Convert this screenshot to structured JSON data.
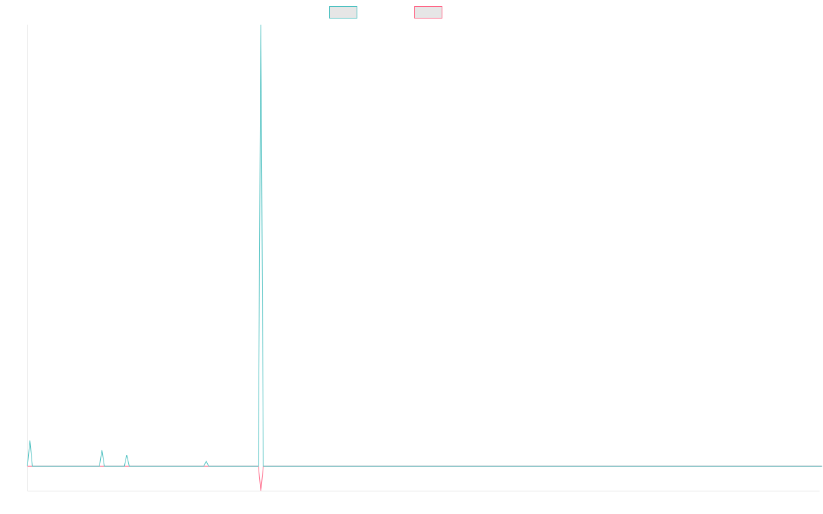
{
  "chart_data": {
    "type": "line",
    "title": "",
    "xlabel": "",
    "ylabel": "",
    "x_count": 320,
    "ylim": [
      -10,
      180
    ],
    "grid": false,
    "legend_position": "top-center",
    "series": [
      {
        "name": "",
        "color": "#4bc0c0",
        "fill": "#e6e6e6",
        "points": [
          {
            "i": 0,
            "v": 0
          },
          {
            "i": 1,
            "v": 10.5
          },
          {
            "i": 2,
            "v": 0
          },
          {
            "i": 29,
            "v": 0
          },
          {
            "i": 30,
            "v": 6.5
          },
          {
            "i": 31,
            "v": 0
          },
          {
            "i": 39,
            "v": 0
          },
          {
            "i": 40,
            "v": 4.5
          },
          {
            "i": 41,
            "v": 0
          },
          {
            "i": 71,
            "v": 0
          },
          {
            "i": 72,
            "v": 2
          },
          {
            "i": 73,
            "v": 0
          },
          {
            "i": 93,
            "v": 0
          },
          {
            "i": 94,
            "v": 180
          },
          {
            "i": 95,
            "v": 0
          },
          {
            "i": 320,
            "v": 0
          }
        ]
      },
      {
        "name": "",
        "color": "#ff6384",
        "fill": "#e6e6e6",
        "points": [
          {
            "i": 0,
            "v": 0
          },
          {
            "i": 93,
            "v": 0
          },
          {
            "i": 94,
            "v": -10
          },
          {
            "i": 95,
            "v": 0
          },
          {
            "i": 320,
            "v": 0
          }
        ]
      }
    ]
  }
}
